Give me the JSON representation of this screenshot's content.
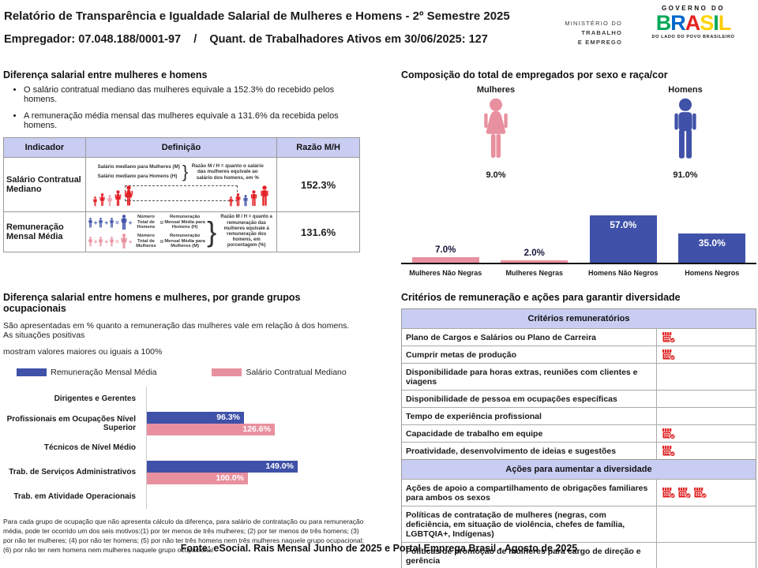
{
  "header": {
    "title": "Relatório de Transparência e Igualdade Salarial de Mulheres e Homens - 2º Semestre 2025",
    "subtitle": "Empregador: 07.048.188/0001-97    /    Quant. de Trabalhadores Ativos em 30/06/2025: 127",
    "ministry": [
      "MINISTÉRIO DO",
      "TRABALHO",
      "E EMPREGO"
    ],
    "gov_logo": {
      "top": "GOVERNO DO",
      "name": "BRASIL",
      "letter_colors": [
        "#00A859",
        "#0066CC",
        "#E52322",
        "#FFD400",
        "#00A859",
        "#FFCC00"
      ],
      "tagline": "DO LADO DO POVO BRASILEIRO"
    }
  },
  "colors": {
    "blue": "#3f51a8",
    "pink": "#e8909f",
    "red": "#e32126",
    "highlight_pink": "#ef9fae",
    "lavender": "#c9cdf2",
    "icon_red": "#e02424"
  },
  "salary_gap": {
    "title": "Diferença salarial entre mulheres e homens",
    "bullets": [
      "O salário contratual mediano das mulheres equivale a 152.3% do recebido pelos homens.",
      "A remuneração média mensal das mulheres equivale a 131.6% da recebida pelos homens."
    ],
    "table": {
      "headers": [
        "Indicador",
        "Definição",
        "Razão M/H"
      ],
      "rows": [
        {
          "indicator": "Salário Contratual Mediano",
          "ratio": "152.3%",
          "diagram": {
            "line1": "Salário mediano para Mulheres (M)",
            "line2": "Salário mediano para Homens (H)",
            "note": "Razão M / H = quanto o salário das mulheres equivale ao salário dos homens, em %"
          }
        },
        {
          "indicator": "Remuneração Mensal Média",
          "ratio": "131.6%",
          "diagram": {
            "plus": "+",
            "equals": "=",
            "men_label1": "Número Total de Homens",
            "men_label2": "Remuneração Mensal Média para Homens (H)",
            "women_label1": "Número Total de Mulheres",
            "women_label2": "Remuneração Mensal Média para Mulheres (M)",
            "note": "Razão M / H = quanto a remuneração das mulheres equivale à remuneração dos homens, em porcentagem (%)"
          }
        }
      ]
    }
  },
  "composition": {
    "title": "Composição do total de empregados por sexo e raça/cor",
    "female_label": "Mulheres",
    "female_pct": "9.0%",
    "male_label": "Homens",
    "male_pct": "91.0%"
  },
  "occupational": {
    "title": "Diferença salarial entre homens e mulheres, por grande grupos ocupacionais",
    "subtitle_lines": [
      "São apresentadas em % quanto a remuneração das mulheres vale em relação à dos homens. As situações positivas",
      "mostram valores maiores ou iguais a 100%"
    ],
    "footnote": "Para cada grupo de ocupação que não apresenta cálculo da diferença, para salário de contratação ou para remuneração média, pode ter ocorrido um dos seis motivos:(1) por ter menos de três mulheres; (2) por ter menos de três homens; (3) por não ter mulheres; (4) por não ter homens; (5) por não ter três homens nem três mulheres naquele grupo ocupacional; (6) por não ter nem homens nem mulheres naquele grupo ocupacional"
  },
  "criteria": {
    "title": "Critérios de remuneração e ações para garantir diversidade",
    "sections": [
      {
        "header": "Critérios remuneratórios",
        "rows": [
          {
            "label": "Plano de Cargos e Salários ou Plano de Carreira",
            "icons": 1
          },
          {
            "label": "Cumprir metas de produção",
            "icons": 1
          },
          {
            "label": "Disponibilidade para horas extras, reuniões com clientes e viagens",
            "icons": 0
          },
          {
            "label": "Disponibilidade de pessoa em ocupações específicas",
            "icons": 0
          },
          {
            "label": "Tempo de experiência profissional",
            "icons": 0
          },
          {
            "label": "Capacidade de trabalho em equipe",
            "icons": 1
          },
          {
            "label": "Proatividade, desenvolvimento de ideias e sugestões",
            "icons": 1
          }
        ]
      },
      {
        "header": "Ações para aumentar a diversidade",
        "rows": [
          {
            "label": "Ações de apoio a compartilhamento de obrigações familiares para ambos os sexos",
            "icons": 3
          },
          {
            "label": "Políticas de contratação de mulheres (negras, com deficiência, em situação de violência, chefes de família, LGBTQIA+, Indígenas)",
            "icons": 0
          },
          {
            "label": "Políticas de promoção de mulheres para cargo de direção e gerência",
            "icons": 0
          }
        ]
      }
    ]
  },
  "footer": {
    "source": "Fonte: eSocial. Rais Mensal Junho de 2025 e Portal Emprega Brasil - Agosto de 2025"
  },
  "chart_data": [
    {
      "type": "bar",
      "title": "Composição do total de empregados por sexo e raça/cor",
      "categories": [
        "Mulheres Não Negras",
        "Mulheres Negras",
        "Homens Não Negros",
        "Homens Negros"
      ],
      "values": [
        7.0,
        2.0,
        57.0,
        35.0
      ],
      "colors": [
        "#e8909f",
        "#e8909f",
        "#3f51a8",
        "#3f51a8"
      ],
      "ylim": [
        0,
        60
      ],
      "unit": "%",
      "extra": {
        "female_total": 9.0,
        "male_total": 91.0
      }
    },
    {
      "type": "bar",
      "orientation": "horizontal",
      "title": "Diferença salarial entre homens e mulheres, por grande grupos ocupacionais",
      "categories": [
        "Dirigentes e Gerentes",
        "Profissionais em Ocupações Nível Superior",
        "Técnicos de Nível Médio",
        "Trab. de Serviços Administrativos",
        "Trab. em Atividade Operacionais"
      ],
      "series": [
        {
          "name": "Remuneração Mensal Média",
          "color": "#3f51a8",
          "values": [
            null,
            96.3,
            null,
            149.0,
            null
          ]
        },
        {
          "name": "Salário Contratual Mediano",
          "color": "#e8909f",
          "values": [
            null,
            126.6,
            null,
            100.0,
            null
          ]
        }
      ],
      "xlim": [
        0,
        160
      ],
      "unit": "%",
      "legend_position": "top"
    }
  ]
}
